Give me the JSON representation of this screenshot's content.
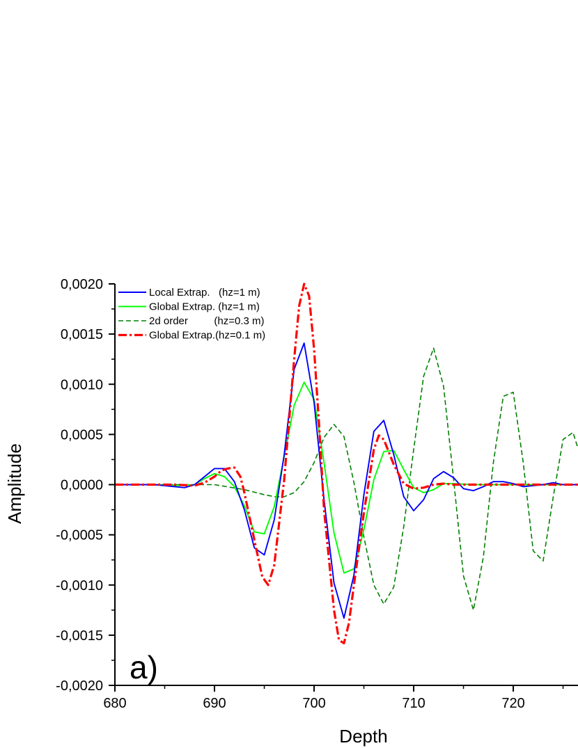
{
  "chart_data": {
    "type": "line",
    "xlabel": "Depth",
    "ylabel": "Amplitude",
    "panel_label": "a)",
    "xlim": [
      680,
      726.5
    ],
    "ylim": [
      -0.002,
      0.002
    ],
    "x_ticks": [
      680,
      690,
      700,
      710,
      720
    ],
    "x_tick_labels": [
      "680",
      "690",
      "700",
      "710",
      "720"
    ],
    "y_ticks": [
      0.002,
      0.0015,
      0.001,
      0.0005,
      0,
      -0.0005,
      -0.001,
      -0.0015,
      -0.002
    ],
    "y_tick_labels": [
      "0,0020",
      "0,0015",
      "0,0010",
      "0,0005",
      "0,0000",
      "-0,0005",
      "-0,0010",
      "-0,0015",
      "-0,0020"
    ],
    "grid": false,
    "legend_position": "top-left",
    "series": [
      {
        "name": "Local Extrap.   (hz=1 m)",
        "color": "#0000ff",
        "style": "solid",
        "x": [
          680,
          682,
          684,
          686,
          687,
          688,
          689,
          690,
          691,
          692,
          693,
          694,
          695,
          696,
          697,
          698,
          699,
          700,
          701,
          702,
          703,
          704,
          705,
          706,
          707,
          708,
          709,
          710,
          711,
          712,
          713,
          714,
          715,
          716,
          717,
          718,
          719,
          720,
          721,
          722,
          723,
          724,
          725,
          726.5
        ],
        "y": [
          0,
          0,
          0,
          -2e-05,
          -3e-05,
          0,
          8e-05,
          0.00016,
          0.00016,
          3e-05,
          -0.00025,
          -0.00063,
          -0.0007,
          -0.00035,
          0.0003,
          0.00115,
          0.00141,
          0.00082,
          -0.00015,
          -0.00098,
          -0.00133,
          -0.0009,
          -0.0001,
          0.00053,
          0.00064,
          0.0003,
          -0.00012,
          -0.00026,
          -0.00015,
          6e-05,
          0.00013,
          7e-05,
          -4e-05,
          -6e-05,
          -2e-05,
          3e-05,
          3e-05,
          1e-05,
          -2e-05,
          -1e-05,
          0,
          2e-05,
          0,
          0
        ]
      },
      {
        "name": "Global Extrap. (hz=1 m)",
        "color": "#00ff00",
        "style": "solid",
        "x": [
          680,
          682,
          684,
          686,
          688,
          689,
          690,
          691,
          692,
          693,
          694,
          695,
          696,
          697,
          698,
          699,
          700,
          701,
          702,
          703,
          704,
          705,
          706,
          707,
          708,
          709,
          710,
          711,
          712,
          713,
          714,
          716,
          718,
          720,
          722,
          724,
          726.5
        ],
        "y": [
          0,
          0,
          0,
          -1e-05,
          0,
          6e-05,
          0.00011,
          8e-05,
          -2e-05,
          -0.00021,
          -0.00047,
          -0.00049,
          -0.00022,
          0.00028,
          0.00079,
          0.00102,
          0.00085,
          0.00022,
          -0.00048,
          -0.00088,
          -0.00084,
          -0.00045,
          5e-05,
          0.00033,
          0.00034,
          0.00015,
          -3e-05,
          -8e-05,
          -5e-05,
          1e-05,
          1e-05,
          0,
          0,
          0,
          0,
          0,
          0
        ]
      },
      {
        "name": "2d order         (hz=0.3 m)",
        "color": "#008000",
        "style": "dashed",
        "x": [
          680,
          685,
          690,
          693,
          695,
          696,
          697,
          698,
          699,
          700,
          701,
          702,
          703,
          704,
          705,
          706,
          707,
          708,
          709,
          710,
          711,
          712,
          713,
          714,
          715,
          716,
          717,
          718,
          719,
          720,
          721,
          722,
          723,
          724,
          725,
          726,
          726.5
        ],
        "y": [
          0,
          0,
          0,
          -5e-05,
          -0.0001,
          -0.00012,
          -0.00012,
          -8e-05,
          3e-05,
          0.00022,
          0.00047,
          0.0006,
          0.00048,
          2e-05,
          -0.00052,
          -0.001,
          -0.00119,
          -0.00102,
          -0.00042,
          0.00035,
          0.00108,
          0.00136,
          0.00098,
          6e-05,
          -0.00091,
          -0.00125,
          -0.00072,
          0.00022,
          0.00088,
          0.00092,
          0.00022,
          -0.00066,
          -0.00076,
          -0.00013,
          0.00045,
          0.00052,
          0.00036
        ]
      },
      {
        "name": "Global Extrap.(hz=0.1 m)",
        "color": "#ff0000",
        "style": "dashdot",
        "x": [
          680,
          684,
          686,
          688,
          689,
          690,
          690.7,
          691.3,
          692,
          692.6,
          693,
          694,
          694.8,
          695.4,
          696,
          697,
          698,
          698.5,
          699,
          699.5,
          700,
          700.5,
          701,
          702,
          702.5,
          703,
          703.5,
          704,
          705,
          706,
          706.5,
          707,
          708,
          709,
          710,
          711,
          712,
          713,
          714,
          716,
          718,
          720,
          722,
          724,
          726.5
        ],
        "y": [
          0,
          0,
          0,
          -1e-05,
          2e-05,
          8e-05,
          0.00014,
          0.00016,
          0.00017,
          8e-05,
          -8e-05,
          -0.00055,
          -0.00092,
          -0.001,
          -0.0008,
          5e-05,
          0.00125,
          0.00178,
          0.002,
          0.00188,
          0.00135,
          0.0006,
          -0.00025,
          -0.00125,
          -0.00155,
          -0.00158,
          -0.00138,
          -0.001,
          -0.00028,
          0.00035,
          0.00049,
          0.00045,
          0.0002,
          1e-05,
          -4e-05,
          -3e-05,
          0,
          1e-05,
          0,
          0,
          0,
          0,
          0,
          0,
          0
        ]
      }
    ]
  }
}
